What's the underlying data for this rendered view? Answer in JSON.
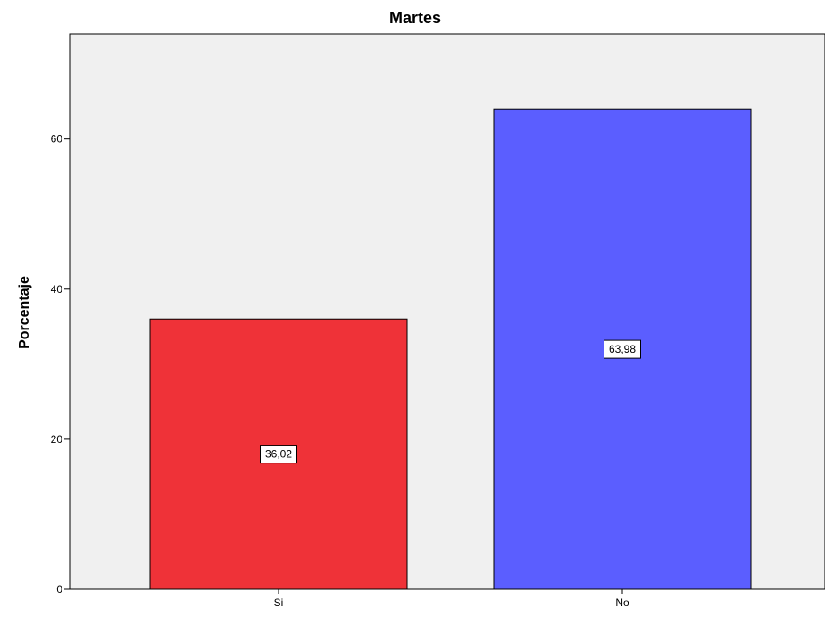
{
  "chart_data": {
    "type": "bar",
    "title": "Martes",
    "xlabel": "",
    "ylabel": "Porcentaje",
    "categories": [
      "Si",
      "No"
    ],
    "values": [
      36.02,
      63.98
    ],
    "data_labels": [
      "36,02",
      "63,98"
    ],
    "colors": [
      "#ef3238",
      "#5b5eff"
    ],
    "ylim": [
      0,
      74
    ],
    "yticks": [
      0,
      20,
      40,
      60
    ],
    "ytick_labels": [
      "0",
      "20",
      "40",
      "60"
    ],
    "plot_background": "#f0f0f0",
    "grid": false
  }
}
